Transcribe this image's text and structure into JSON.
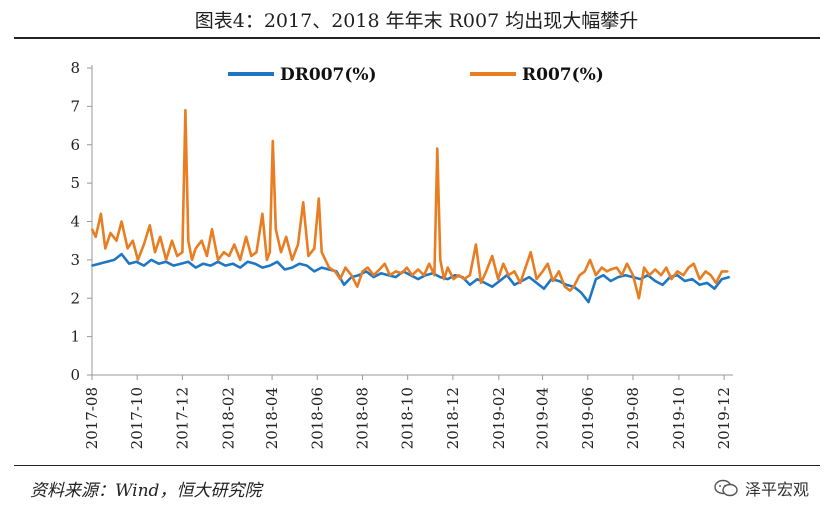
{
  "header": {
    "title": "图表4：2017、2018 年年末 R007 均出现大幅攀升"
  },
  "footer": {
    "source": "资料来源：Wind，恒大研究院",
    "watermark": "泽平宏观"
  },
  "colors": {
    "dr007": "#1f77c4",
    "r007": "#e87d22",
    "axis": "#999999"
  },
  "chart_data": {
    "type": "line",
    "title": "",
    "xlabel": "",
    "ylabel": "",
    "ylim": [
      0,
      8
    ],
    "yticks": [
      0,
      1,
      2,
      3,
      4,
      5,
      6,
      7,
      8
    ],
    "xtick_labels": [
      "2017-08",
      "2017-10",
      "2017-12",
      "2018-02",
      "2018-04",
      "2018-06",
      "2018-08",
      "2018-10",
      "2018-12",
      "2019-02",
      "2019-04",
      "2019-06",
      "2019-08",
      "2019-10",
      "2019-12"
    ],
    "xtick_days": [
      0,
      61,
      122,
      184,
      243,
      304,
      365,
      426,
      487,
      549,
      608,
      669,
      730,
      792,
      853
    ],
    "x_range_days": [
      0,
      865
    ],
    "legend": "top",
    "series": [
      {
        "name": "DR007(%)",
        "color": "#1f77c4",
        "x": [
          0,
          10,
          20,
          30,
          40,
          50,
          60,
          70,
          80,
          90,
          100,
          110,
          120,
          130,
          140,
          150,
          160,
          170,
          180,
          190,
          200,
          210,
          220,
          230,
          240,
          250,
          260,
          270,
          280,
          290,
          300,
          310,
          320,
          330,
          340,
          350,
          360,
          370,
          380,
          390,
          400,
          410,
          420,
          430,
          440,
          450,
          460,
          470,
          480,
          490,
          500,
          510,
          520,
          530,
          540,
          550,
          560,
          570,
          580,
          590,
          600,
          610,
          620,
          630,
          640,
          650,
          660,
          670,
          680,
          690,
          700,
          710,
          720,
          730,
          740,
          750,
          760,
          770,
          780,
          790,
          800,
          810,
          820,
          830,
          840,
          850,
          860
        ],
        "y": [
          2.85,
          2.9,
          2.95,
          3.0,
          3.15,
          2.9,
          2.95,
          2.85,
          3.0,
          2.9,
          2.95,
          2.85,
          2.9,
          2.95,
          2.8,
          2.9,
          2.85,
          2.95,
          2.85,
          2.9,
          2.8,
          2.95,
          2.9,
          2.8,
          2.85,
          2.95,
          2.75,
          2.8,
          2.9,
          2.85,
          2.7,
          2.8,
          2.75,
          2.7,
          2.35,
          2.55,
          2.6,
          2.7,
          2.55,
          2.65,
          2.6,
          2.55,
          2.7,
          2.6,
          2.5,
          2.6,
          2.65,
          2.55,
          2.5,
          2.6,
          2.55,
          2.35,
          2.5,
          2.4,
          2.3,
          2.45,
          2.6,
          2.35,
          2.45,
          2.55,
          2.4,
          2.25,
          2.5,
          2.45,
          2.35,
          2.3,
          2.15,
          1.9,
          2.5,
          2.6,
          2.45,
          2.55,
          2.6,
          2.55,
          2.5,
          2.6,
          2.45,
          2.35,
          2.55,
          2.6,
          2.45,
          2.5,
          2.35,
          2.4,
          2.25,
          2.5,
          2.55
        ]
      },
      {
        "name": "R007(%)",
        "color": "#e87d22",
        "x": [
          0,
          5,
          12,
          18,
          25,
          33,
          40,
          48,
          55,
          62,
          70,
          78,
          85,
          92,
          100,
          108,
          115,
          122,
          126,
          130,
          135,
          140,
          148,
          155,
          162,
          170,
          178,
          185,
          192,
          200,
          208,
          215,
          222,
          230,
          236,
          240,
          244,
          248,
          255,
          262,
          270,
          278,
          285,
          292,
          300,
          306,
          310,
          315,
          320,
          328,
          335,
          342,
          350,
          358,
          365,
          372,
          380,
          388,
          395,
          402,
          410,
          418,
          425,
          432,
          440,
          448,
          455,
          462,
          466,
          470,
          475,
          480,
          488,
          495,
          502,
          510,
          518,
          525,
          532,
          540,
          548,
          555,
          562,
          570,
          578,
          585,
          592,
          600,
          608,
          615,
          622,
          630,
          638,
          645,
          650,
          658,
          665,
          672,
          680,
          688,
          695,
          700,
          708,
          715,
          722,
          730,
          738,
          745,
          752,
          760,
          768,
          775,
          782,
          790,
          798,
          805,
          812,
          820,
          828,
          835,
          842,
          850,
          858
        ],
        "y": [
          3.8,
          3.6,
          4.2,
          3.3,
          3.7,
          3.5,
          4.0,
          3.3,
          3.5,
          3.0,
          3.4,
          3.9,
          3.2,
          3.6,
          3.0,
          3.5,
          3.1,
          3.2,
          6.9,
          3.5,
          3.0,
          3.3,
          3.5,
          3.1,
          3.8,
          3.0,
          3.2,
          3.1,
          3.4,
          3.0,
          3.6,
          3.1,
          3.2,
          4.2,
          3.0,
          3.2,
          6.1,
          3.8,
          3.2,
          3.6,
          3.0,
          3.4,
          4.5,
          3.1,
          3.3,
          4.6,
          3.2,
          3.0,
          2.8,
          2.7,
          2.5,
          2.8,
          2.6,
          2.3,
          2.7,
          2.8,
          2.6,
          2.75,
          2.9,
          2.6,
          2.7,
          2.65,
          2.8,
          2.6,
          2.75,
          2.6,
          2.9,
          2.6,
          5.9,
          3.0,
          2.5,
          2.8,
          2.5,
          2.6,
          2.5,
          2.6,
          3.4,
          2.4,
          2.7,
          3.1,
          2.5,
          2.9,
          2.6,
          2.7,
          2.4,
          2.8,
          3.2,
          2.5,
          2.7,
          2.9,
          2.45,
          2.7,
          2.3,
          2.2,
          2.3,
          2.6,
          2.7,
          3.0,
          2.6,
          2.8,
          2.7,
          2.75,
          2.8,
          2.6,
          2.9,
          2.6,
          2.0,
          2.8,
          2.6,
          2.75,
          2.6,
          2.8,
          2.5,
          2.7,
          2.6,
          2.8,
          2.9,
          2.5,
          2.7,
          2.6,
          2.4,
          2.7,
          2.7
        ]
      }
    ]
  }
}
